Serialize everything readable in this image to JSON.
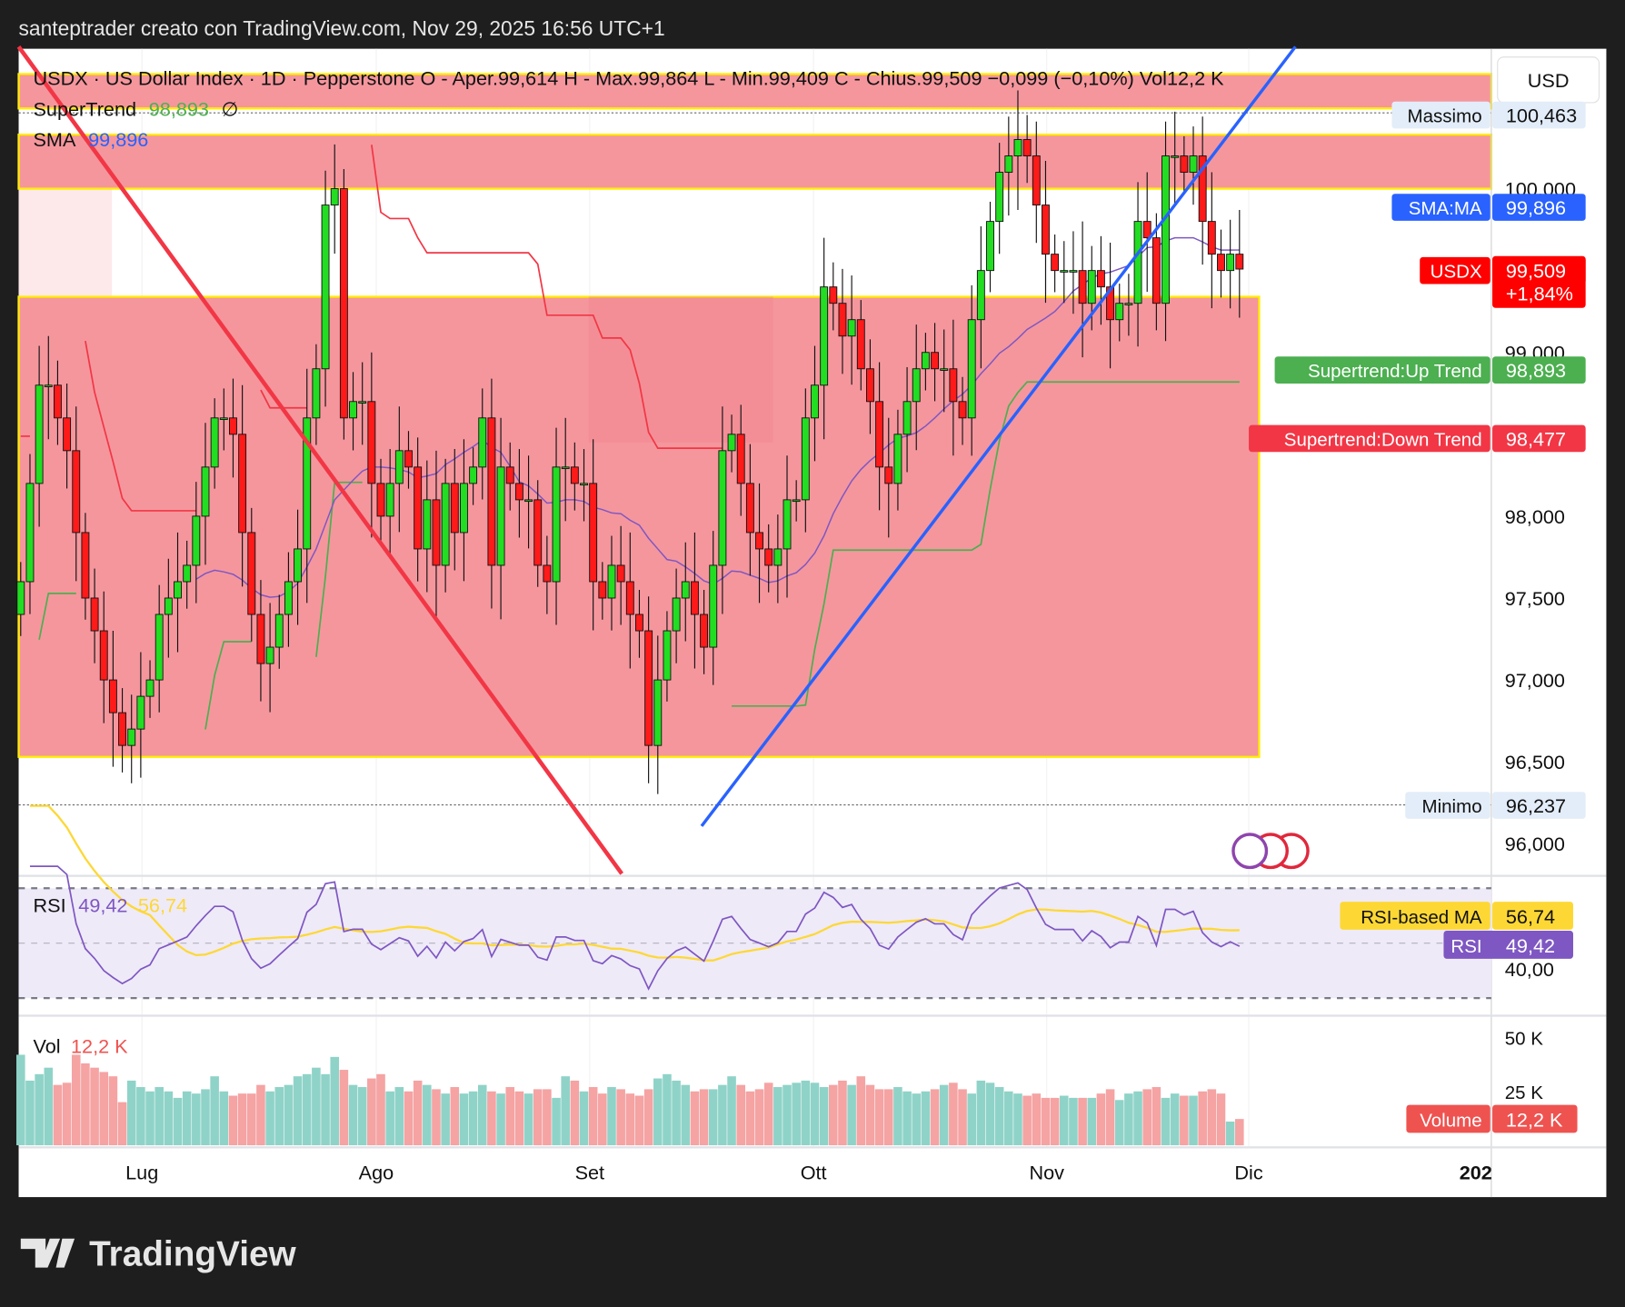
{
  "header": {
    "caption": "santeptrader creato con TradingView.com, Nov 29, 2025 16:56 UTC+1"
  },
  "legend": {
    "symbol_line": "USDX · US Dollar Index · 1D · Pepperstone  O - Aper.99,614  H - Max.99,864  L - Min.99,409  C - Chius.99,509  −0,099 (−0,10%)  Vol12,2 K",
    "supertrend_label": "SuperTrend",
    "supertrend_value": "98,893",
    "supertrend_flag": "∅",
    "sma_label": "SMA",
    "sma_value": "99,896"
  },
  "currency": "USD",
  "price_axis": {
    "ticks": [
      "100,000",
      "99,000",
      "98,000",
      "97,500",
      "97,000",
      "96,500",
      "96,000"
    ]
  },
  "markers": {
    "high_label": "Massimo",
    "high_value": "100,463",
    "low_label": "Minimo",
    "low_value": "96,237",
    "sma_label": "SMA:MA",
    "sma_value": "99,896",
    "last_label": "USDX",
    "last_value": "99,509",
    "last_change": "+1,84%",
    "st_up_label": "Supertrend:Up Trend",
    "st_up_value": "98,893",
    "st_down_label": "Supertrend:Down Trend",
    "st_down_value": "98,477"
  },
  "rsi": {
    "label": "RSI",
    "value": "49,42",
    "ma_value": "56,74",
    "ma_label": "RSI-based MA",
    "axis": "40,00"
  },
  "volume": {
    "label": "Vol",
    "value": "12,2 K",
    "tag": "Volume",
    "tag_value": "12,2 K",
    "axis": [
      "50 K",
      "25 K"
    ]
  },
  "time_axis": [
    "Lug",
    "Ago",
    "Set",
    "Ott",
    "Nov",
    "Dic",
    "202"
  ],
  "footer": {
    "brand": "TradingView"
  },
  "colors": {
    "up": "#22dd22",
    "down": "#ff1a1a",
    "sma": "#2962ff",
    "st_up": "#4caf50",
    "st_down": "#f23645",
    "zone": "#f5969d",
    "rsi": "#7e57c2",
    "rsi_ma": "#fdd835",
    "vol_up": "#8fd3c8",
    "vol_down": "#f5a3a3"
  },
  "chart_data": {
    "type": "candlestick",
    "title": "USDX · US Dollar Index · 1D · Pepperstone",
    "ylim": [
      95.8,
      100.9
    ],
    "close": [
      97.6,
      98.2,
      98.8,
      98.8,
      98.6,
      98.4,
      97.9,
      97.5,
      97.3,
      97.0,
      96.8,
      96.6,
      96.7,
      96.9,
      97.0,
      97.4,
      97.5,
      97.6,
      97.7,
      98.0,
      98.3,
      98.6,
      98.6,
      98.5,
      97.9,
      97.4,
      97.1,
      97.2,
      97.4,
      97.6,
      97.8,
      98.6,
      98.9,
      99.9,
      100.0,
      98.6,
      98.7,
      98.7,
      98.2,
      98.0,
      98.2,
      98.4,
      98.3,
      97.8,
      98.1,
      97.7,
      98.2,
      97.9,
      98.2,
      98.3,
      98.6,
      97.7,
      98.3,
      98.2,
      98.1,
      98.1,
      97.7,
      97.6,
      98.3,
      98.3,
      98.2,
      98.2,
      97.6,
      97.5,
      97.7,
      97.6,
      97.4,
      97.3,
      96.6,
      97.0,
      97.3,
      97.5,
      97.6,
      97.4,
      97.2,
      97.7,
      98.4,
      98.5,
      98.2,
      97.9,
      97.8,
      97.7,
      97.8,
      98.1,
      98.1,
      98.6,
      98.8,
      99.4,
      99.3,
      99.1,
      99.2,
      98.9,
      98.7,
      98.3,
      98.2,
      98.5,
      98.7,
      98.9,
      99.0,
      98.9,
      98.9,
      98.7,
      98.6,
      99.2,
      99.5,
      99.8,
      100.1,
      100.2,
      100.3,
      100.2,
      99.9,
      99.6,
      99.5,
      99.5,
      99.5,
      99.3,
      99.5,
      99.4,
      99.2,
      99.3,
      99.3,
      99.8,
      99.7,
      99.3,
      100.2,
      100.2,
      100.1,
      100.2,
      99.8,
      99.6,
      99.5,
      99.6,
      99.509
    ],
    "volume_k": [
      42,
      30,
      33,
      36,
      28,
      29,
      42,
      38,
      36,
      34,
      32,
      20,
      30,
      27,
      25,
      27,
      25,
      22,
      25,
      24,
      26,
      32,
      25,
      23,
      24,
      24,
      28,
      25,
      27,
      28,
      32,
      33,
      36,
      33,
      41,
      35,
      28,
      27,
      31,
      33,
      25,
      27,
      25,
      30,
      28,
      26,
      24,
      27,
      24,
      25,
      28,
      25,
      24,
      27,
      25,
      24,
      26,
      26,
      22,
      32,
      30,
      25,
      27,
      24,
      27,
      26,
      24,
      23,
      26,
      31,
      33,
      30,
      28,
      25,
      26,
      26,
      28,
      32,
      28,
      25,
      26,
      29,
      27,
      28,
      29,
      30,
      29,
      27,
      28,
      30,
      28,
      32,
      28,
      26,
      26,
      27,
      25,
      24,
      25,
      26,
      28,
      29,
      26,
      24,
      30,
      29,
      27,
      25,
      24,
      23,
      24,
      22,
      22,
      23,
      22,
      22,
      22,
      24,
      26,
      21,
      24,
      25,
      26,
      27,
      22,
      24,
      23,
      23,
      25,
      26,
      24,
      11,
      12.2
    ],
    "zones": [
      [
        100.49,
        100.7
      ],
      [
        100.0,
        100.33
      ],
      [
        96.53,
        99.34
      ]
    ],
    "high_line": 100.463,
    "low_line": 96.237,
    "sma_period": 20,
    "rsi_period": 14
  }
}
